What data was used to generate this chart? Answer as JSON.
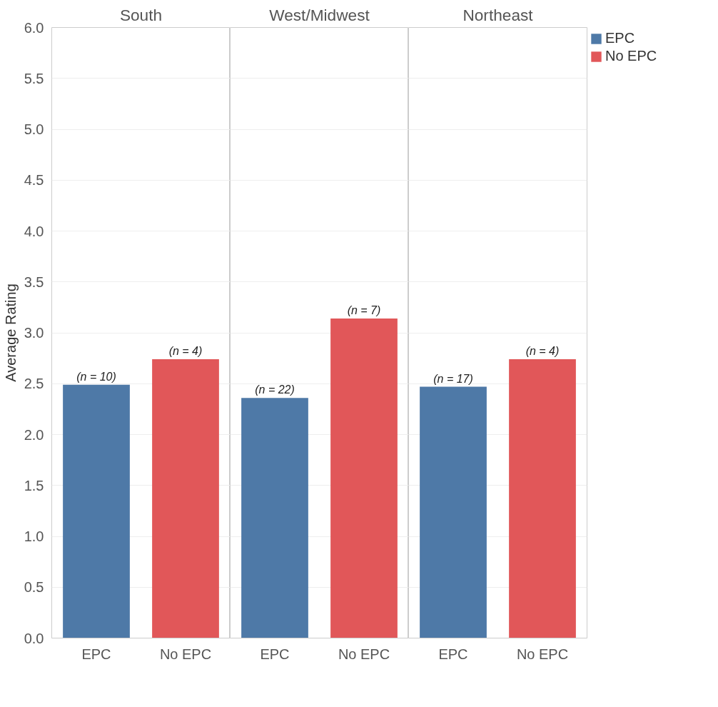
{
  "chart_data": [
    {
      "type": "bar",
      "title": "South",
      "ylabel": "Average Rating",
      "categories": [
        "EPC",
        "No EPC"
      ],
      "stacked": true,
      "ylim": [
        0,
        6
      ],
      "yticks": [
        {
          "value": 0,
          "label": "0.0"
        },
        0.5,
        {
          "value": 1,
          "label": "1.0"
        },
        1.5,
        {
          "value": 2,
          "label": "2.0"
        },
        2.5,
        {
          "value": 3,
          "label": "3.0"
        },
        3.5,
        {
          "value": 4,
          "label": "4.0"
        },
        4.5,
        {
          "value": 5,
          "label": "5.0"
        },
        5.5,
        {
          "value": 6,
          "label": "6.0"
        }
      ],
      "grid": "y",
      "series": [
        {
          "color": "#4e79a7",
          "values": [
            2.49,
            null
          ]
        },
        {
          "color": "#e15759",
          "values": [
            null,
            2.74
          ]
        }
      ],
      "annotations": [
        {
          "text": "(n = 10)",
          "x": "EPC",
          "y": 2.49
        },
        {
          "text": "(n = 4)",
          "x": "No EPC",
          "y": 2.74
        }
      ]
    },
    {
      "type": "bar",
      "title": "West/Midwest",
      "categories": [
        "EPC",
        "No EPC"
      ],
      "stacked": true,
      "ylim": [
        0,
        6
      ],
      "yticks": [
        0,
        0.5,
        1,
        1.5,
        2,
        2.5,
        3,
        3.5,
        4,
        4.5,
        5,
        5.5,
        6
      ],
      "grid": "y",
      "tick_labels": "x",
      "series": [
        {
          "color": "#4e79a7",
          "values": [
            2.36,
            null
          ]
        },
        {
          "color": "#e15759",
          "values": [
            null,
            3.14
          ]
        }
      ],
      "annotations": [
        {
          "text": "(n = 22)",
          "x": "EPC",
          "y": 2.36
        },
        {
          "text": "(n = 7)",
          "x": "No EPC",
          "y": 3.14
        }
      ]
    },
    {
      "type": "bar",
      "title": "Northeast",
      "categories": [
        "EPC",
        "No EPC"
      ],
      "stacked": true,
      "ylim": [
        0,
        6
      ],
      "yticks": [
        0,
        0.5,
        1,
        1.5,
        2,
        2.5,
        3,
        3.5,
        4,
        4.5,
        5,
        5.5,
        6
      ],
      "grid": "y",
      "tick_labels": "x",
      "legend": "top right",
      "series": [
        {
          "name": "EPC",
          "color": "#4e79a7",
          "values": [
            2.47,
            null
          ]
        },
        {
          "name": "No EPC",
          "color": "#e15759",
          "values": [
            null,
            2.74
          ]
        }
      ],
      "annotations": [
        {
          "text": "(n = 17)",
          "x": "EPC",
          "y": 2.47
        },
        {
          "text": "(n = 4)",
          "x": "No EPC",
          "y": 2.74
        }
      ]
    }
  ]
}
